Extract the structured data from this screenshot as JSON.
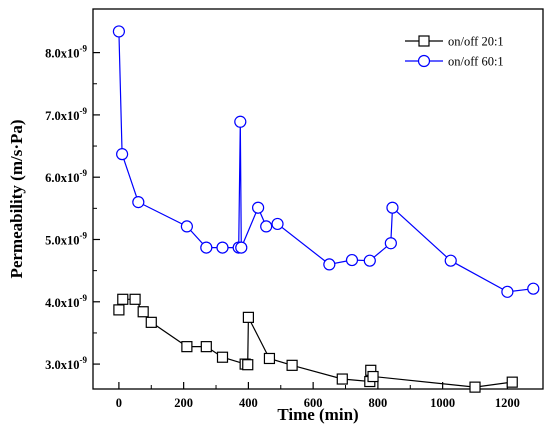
{
  "chart_data": {
    "type": "line",
    "xlabel": "Time (min)",
    "ylabel": "Permeability (m/s·Pa)",
    "xlim": [
      -80,
      1310
    ],
    "ylim": [
      2.6,
      8.7
    ],
    "x_ticks": [
      0,
      200,
      400,
      600,
      800,
      1000,
      1200
    ],
    "y_ticks": [
      {
        "value": 3.0,
        "mantissa": "3.0",
        "base": "x10",
        "exp": "-9"
      },
      {
        "value": 4.0,
        "mantissa": "4.0",
        "base": "x10",
        "exp": "-9"
      },
      {
        "value": 5.0,
        "mantissa": "5.0",
        "base": "x10",
        "exp": "-9"
      },
      {
        "value": 6.0,
        "mantissa": "6.0",
        "base": "x10",
        "exp": "-9"
      },
      {
        "value": 7.0,
        "mantissa": "7.0",
        "base": "x10",
        "exp": "-9"
      },
      {
        "value": 8.0,
        "mantissa": "8.0",
        "base": "x10",
        "exp": "-9"
      }
    ],
    "legend_position": "top-right",
    "grid": false,
    "series": [
      {
        "name": "on/off 20:1",
        "marker": "square",
        "color": "#000000",
        "x": [
          0,
          12,
          50,
          75,
          100,
          210,
          270,
          320,
          390,
          398,
          400,
          465,
          535,
          690,
          775,
          778,
          785,
          1100,
          1215
        ],
        "y": [
          3.87,
          4.04,
          4.04,
          3.84,
          3.67,
          3.28,
          3.28,
          3.11,
          3.0,
          2.99,
          3.75,
          3.09,
          2.98,
          2.76,
          2.72,
          2.9,
          2.8,
          2.63,
          2.71
        ]
      },
      {
        "name": "on/off 60:1",
        "marker": "circle",
        "color": "#0000ff",
        "x": [
          0,
          10,
          60,
          210,
          270,
          320,
          370,
          375,
          378,
          430,
          455,
          490,
          650,
          720,
          775,
          840,
          845,
          1025,
          1200,
          1280
        ],
        "y": [
          8.34,
          6.37,
          5.6,
          5.21,
          4.87,
          4.87,
          4.87,
          6.89,
          4.87,
          5.51,
          5.21,
          5.25,
          4.6,
          4.67,
          4.66,
          4.94,
          5.51,
          4.66,
          4.16,
          4.21
        ]
      }
    ]
  }
}
